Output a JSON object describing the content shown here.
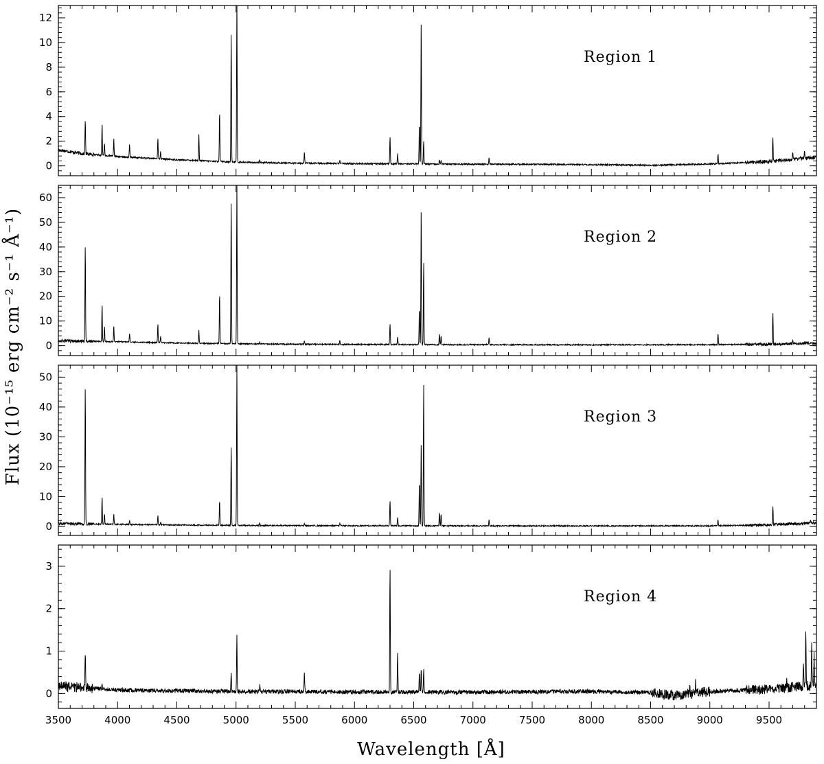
{
  "chart_data": {
    "type": "line",
    "xlabel": "Wavelength [Å]",
    "ylabel": "Flux (10⁻¹⁵ erg cm⁻² s⁻¹ Å⁻¹)",
    "xlim": [
      3500,
      9900
    ],
    "x_ticks": [
      3500,
      4000,
      4500,
      5000,
      5500,
      6000,
      6500,
      7000,
      7500,
      8000,
      8500,
      9000,
      9500
    ],
    "shared_x": true,
    "grid": false,
    "panels": [
      {
        "title": "Region 1",
        "ylim": [
          -0.8,
          13.0
        ],
        "y_ticks": [
          0,
          2,
          4,
          6,
          8,
          10,
          12
        ],
        "continuum": [
          [
            3500,
            1.3
          ],
          [
            3700,
            1.0
          ],
          [
            4000,
            0.75
          ],
          [
            4500,
            0.5
          ],
          [
            5000,
            0.3
          ],
          [
            5500,
            0.22
          ],
          [
            6000,
            0.18
          ],
          [
            6500,
            0.16
          ],
          [
            7000,
            0.14
          ],
          [
            8000,
            0.1
          ],
          [
            8500,
            0.05
          ],
          [
            9000,
            0.15
          ],
          [
            9500,
            0.35
          ],
          [
            9900,
            0.7
          ]
        ],
        "noise": 0.06,
        "lines": [
          [
            3727,
            2.8
          ],
          [
            3869,
            2.6
          ],
          [
            3889,
            1.0
          ],
          [
            3968,
            1.4
          ],
          [
            4101,
            1.0
          ],
          [
            4340,
            1.7
          ],
          [
            4363,
            0.6
          ],
          [
            4686,
            2.2
          ],
          [
            4861,
            4.0
          ],
          [
            4959,
            10.4
          ],
          [
            5007,
            13.5
          ],
          [
            5200,
            0.2
          ],
          [
            5577,
            0.9
          ],
          [
            5876,
            0.3
          ],
          [
            6300,
            2.2
          ],
          [
            6364,
            0.8
          ],
          [
            6548,
            3.3
          ],
          [
            6563,
            11.7
          ],
          [
            6584,
            1.9
          ],
          [
            6717,
            0.35
          ],
          [
            6731,
            0.3
          ],
          [
            7136,
            0.55
          ],
          [
            9069,
            0.8
          ],
          [
            9532,
            2.0
          ],
          [
            9700,
            0.7
          ],
          [
            9800,
            0.6
          ]
        ]
      },
      {
        "title": "Region 2",
        "ylim": [
          -4.0,
          65.0
        ],
        "y_ticks": [
          0,
          10,
          20,
          30,
          40,
          50,
          60
        ],
        "continuum": [
          [
            3500,
            2.0
          ],
          [
            4000,
            1.6
          ],
          [
            4500,
            1.1
          ],
          [
            5000,
            0.8
          ],
          [
            5500,
            0.6
          ],
          [
            6000,
            0.5
          ],
          [
            7000,
            0.4
          ],
          [
            8000,
            0.35
          ],
          [
            9000,
            0.4
          ],
          [
            9500,
            0.6
          ],
          [
            9900,
            1.0
          ]
        ],
        "noise": 0.25,
        "lines": [
          [
            3727,
            39.0
          ],
          [
            3869,
            15.0
          ],
          [
            3889,
            6.0
          ],
          [
            3968,
            6.5
          ],
          [
            4101,
            3.5
          ],
          [
            4340,
            7.5
          ],
          [
            4363,
            2.5
          ],
          [
            4686,
            5.5
          ],
          [
            4861,
            20.0
          ],
          [
            4959,
            57.5
          ],
          [
            5007,
            66.0
          ],
          [
            5200,
            0.8
          ],
          [
            5577,
            1.5
          ],
          [
            5876,
            1.8
          ],
          [
            6300,
            8.5
          ],
          [
            6364,
            3.0
          ],
          [
            6548,
            15.0
          ],
          [
            6563,
            55.5
          ],
          [
            6584,
            33.5
          ],
          [
            6717,
            4.2
          ],
          [
            6731,
            3.5
          ],
          [
            7136,
            3.0
          ],
          [
            9069,
            4.5
          ],
          [
            9532,
            13.0
          ],
          [
            9700,
            1.8
          ]
        ]
      },
      {
        "title": "Region 3",
        "ylim": [
          -3.0,
          54.0
        ],
        "y_ticks": [
          0,
          10,
          20,
          30,
          40,
          50
        ],
        "continuum": [
          [
            3500,
            1.0
          ],
          [
            4000,
            0.7
          ],
          [
            4500,
            0.5
          ],
          [
            5000,
            0.35
          ],
          [
            6000,
            0.25
          ],
          [
            7000,
            0.2
          ],
          [
            8000,
            0.18
          ],
          [
            9000,
            0.2
          ],
          [
            9500,
            0.5
          ],
          [
            9900,
            1.2
          ]
        ],
        "noise": 0.2,
        "lines": [
          [
            3727,
            46.0
          ],
          [
            3869,
            9.0
          ],
          [
            3889,
            3.5
          ],
          [
            3968,
            3.5
          ],
          [
            4101,
            1.3
          ],
          [
            4340,
            3.0
          ],
          [
            4363,
            1.0
          ],
          [
            4861,
            8.3
          ],
          [
            4959,
            26.5
          ],
          [
            5007,
            54.0
          ],
          [
            5200,
            0.9
          ],
          [
            5577,
            0.6
          ],
          [
            5876,
            1.0
          ],
          [
            6300,
            8.5
          ],
          [
            6364,
            2.8
          ],
          [
            6548,
            15.0
          ],
          [
            6563,
            28.0
          ],
          [
            6584,
            48.0
          ],
          [
            6717,
            4.5
          ],
          [
            6731,
            3.8
          ],
          [
            7136,
            2.0
          ],
          [
            9069,
            2.0
          ],
          [
            9532,
            6.5
          ],
          [
            9850,
            1.5
          ]
        ]
      },
      {
        "title": "Region 4",
        "ylim": [
          -0.35,
          3.5
        ],
        "y_ticks": [
          0,
          1,
          2,
          3
        ],
        "continuum": [
          [
            3500,
            0.18
          ],
          [
            4000,
            0.08
          ],
          [
            5000,
            0.05
          ],
          [
            6000,
            0.04
          ],
          [
            7000,
            0.03
          ],
          [
            8000,
            0.05
          ],
          [
            8500,
            0.03
          ],
          [
            8700,
            -0.05
          ],
          [
            9000,
            0.05
          ],
          [
            9500,
            0.1
          ],
          [
            9900,
            0.2
          ]
        ],
        "noise": 0.05,
        "lines": [
          [
            3727,
            0.85
          ],
          [
            3869,
            0.15
          ],
          [
            4959,
            0.4
          ],
          [
            5007,
            1.35
          ],
          [
            5200,
            0.15
          ],
          [
            5577,
            0.45
          ],
          [
            6300,
            3.0
          ],
          [
            6364,
            0.95
          ],
          [
            6548,
            0.5
          ],
          [
            6563,
            0.55
          ],
          [
            6584,
            0.55
          ],
          [
            8830,
            0.3
          ],
          [
            8880,
            0.25
          ],
          [
            9650,
            0.25
          ],
          [
            9790,
            0.6
          ],
          [
            9810,
            1.4
          ],
          [
            9860,
            0.9
          ],
          [
            9880,
            0.8
          ]
        ]
      }
    ]
  }
}
